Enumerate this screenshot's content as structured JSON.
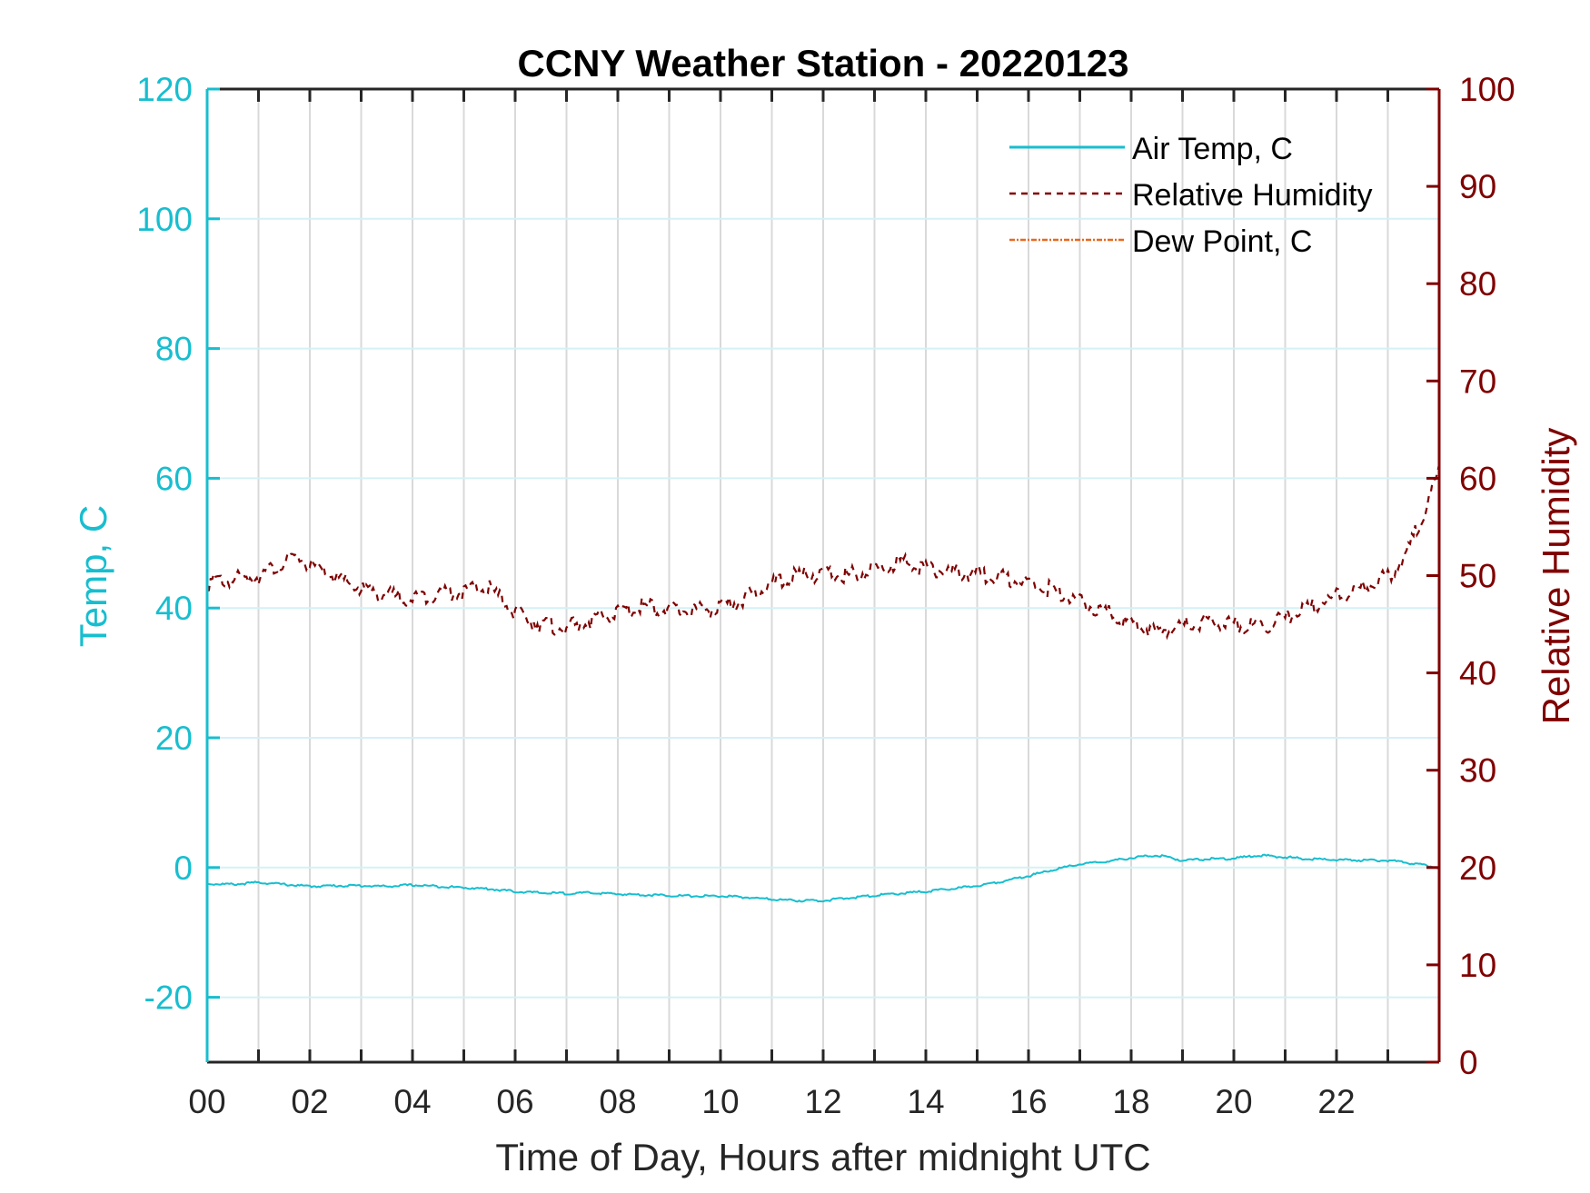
{
  "chart_data": {
    "type": "line",
    "title": "CCNY Weather Station - 20220123",
    "xlabel": "Time of Day, Hours after midnight UTC",
    "ylabel_left": "Temp, C",
    "ylabel_right": "Relative Humidity",
    "xlim": [
      0,
      24
    ],
    "ylim_left": [
      -30,
      120
    ],
    "ylim_right": [
      0,
      100
    ],
    "x_ticks": [
      0,
      2,
      4,
      6,
      8,
      10,
      12,
      14,
      16,
      18,
      20,
      22
    ],
    "x_tick_labels": [
      "00",
      "02",
      "04",
      "06",
      "08",
      "10",
      "12",
      "14",
      "16",
      "18",
      "20",
      "22"
    ],
    "x_minor_ticks": [
      1,
      3,
      5,
      7,
      9,
      11,
      13,
      15,
      17,
      19,
      21,
      23
    ],
    "y_left_ticks": [
      -20,
      0,
      20,
      40,
      60,
      80,
      100,
      120
    ],
    "y_left_tick_labels": [
      "-20",
      "0",
      "20",
      "40",
      "60",
      "80",
      "100",
      "120"
    ],
    "y_right_ticks": [
      0,
      10,
      20,
      30,
      40,
      50,
      60,
      70,
      80,
      90,
      100
    ],
    "y_right_tick_labels": [
      "0",
      "10",
      "20",
      "30",
      "40",
      "50",
      "60",
      "70",
      "80",
      "90",
      "100"
    ],
    "grid": true,
    "legend_position": "top-right",
    "colors": {
      "left_axis": "#17becf",
      "right_axis": "#7f0000",
      "temp": "#17becf",
      "rh": "#7f0000",
      "dew": "#e8681f",
      "grid_x": "#d9d9d9",
      "grid_y": "#d4f1f6",
      "axis_dark": "#262626"
    },
    "series": [
      {
        "name": "Air Temp, C",
        "axis": "left",
        "style": "solid",
        "x": [
          0,
          0.5,
          1,
          1.5,
          2,
          2.5,
          3,
          3.5,
          4,
          4.5,
          5,
          5.5,
          6,
          6.5,
          7,
          7.5,
          8,
          8.5,
          9,
          9.5,
          10,
          10.5,
          11,
          11.5,
          12,
          12.5,
          13,
          13.5,
          14,
          14.5,
          15,
          15.5,
          16,
          16.5,
          17,
          17.5,
          18,
          18.5,
          19,
          19.5,
          20,
          20.5,
          21,
          21.5,
          22,
          22.5,
          23,
          23.5,
          24
        ],
        "values": [
          -2.5,
          -2.6,
          -2.3,
          -2.6,
          -2.9,
          -2.8,
          -2.8,
          -2.9,
          -2.7,
          -2.9,
          -3.1,
          -3.3,
          -3.7,
          -3.9,
          -4.0,
          -3.9,
          -4.1,
          -4.2,
          -4.3,
          -4.4,
          -4.4,
          -4.6,
          -4.9,
          -5.1,
          -5.1,
          -4.7,
          -4.3,
          -4.0,
          -3.7,
          -3.3,
          -2.8,
          -2.1,
          -1.3,
          -0.3,
          0.5,
          0.9,
          1.5,
          1.9,
          1.1,
          1.3,
          1.4,
          1.9,
          1.6,
          1.3,
          1.2,
          1.1,
          1.1,
          0.6,
          0.0
        ]
      },
      {
        "name": "Relative Humidity",
        "axis": "right",
        "style": "dashed",
        "x": [
          0,
          0.5,
          1,
          1.5,
          1.8,
          2,
          2.5,
          3,
          3.5,
          4,
          4.5,
          5,
          5.5,
          6,
          6.5,
          7,
          7.5,
          8,
          8.5,
          9,
          9.5,
          10,
          10.5,
          11,
          11.5,
          12,
          12.5,
          13,
          13.5,
          14,
          14.5,
          15,
          15.5,
          16,
          16.5,
          17,
          17.5,
          18,
          18.5,
          19,
          19.5,
          20,
          20.5,
          21,
          21.5,
          22,
          22.5,
          23,
          23.3,
          23.6,
          23.8,
          24
        ],
        "values": [
          49.3,
          49.6,
          50.0,
          51.2,
          52.0,
          51.0,
          49.8,
          48.6,
          48.0,
          47.6,
          48.2,
          48.4,
          48.7,
          46.2,
          45.0,
          44.6,
          45.4,
          46.2,
          46.9,
          46.4,
          46.5,
          46.6,
          47.7,
          49.2,
          50.0,
          50.2,
          50.0,
          50.7,
          51.4,
          50.8,
          50.3,
          50.2,
          49.8,
          49.2,
          48.5,
          47.2,
          46.3,
          45.0,
          44.3,
          44.9,
          45.3,
          45.0,
          44.6,
          45.6,
          46.8,
          47.8,
          48.8,
          49.9,
          51.8,
          55.0,
          57.6,
          61.0
        ]
      },
      {
        "name": "Dew Point, C",
        "axis": "left",
        "style": "dashdot",
        "x": [],
        "values": []
      }
    ]
  }
}
